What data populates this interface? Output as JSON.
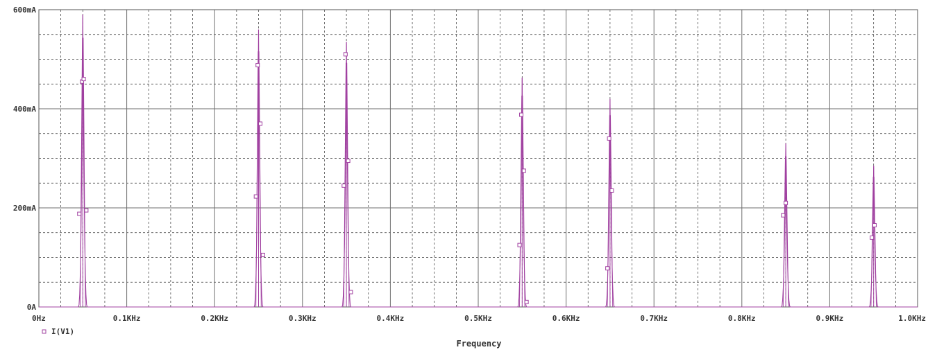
{
  "chart_data": {
    "type": "line",
    "xlabel": "Frequency",
    "ylabel": "",
    "xlim": [
      0,
      1000
    ],
    "ylim": [
      0,
      600
    ],
    "x_ticks": [
      {
        "value": 0,
        "label": "0Hz"
      },
      {
        "value": 100,
        "label": "0.1KHz"
      },
      {
        "value": 200,
        "label": "0.2KHz"
      },
      {
        "value": 300,
        "label": "0.3KHz"
      },
      {
        "value": 400,
        "label": "0.4KHz"
      },
      {
        "value": 500,
        "label": "0.5KHz"
      },
      {
        "value": 600,
        "label": "0.6KHz"
      },
      {
        "value": 700,
        "label": "0.7KHz"
      },
      {
        "value": 800,
        "label": "0.8KHz"
      },
      {
        "value": 900,
        "label": "0.9KHz"
      },
      {
        "value": 1000,
        "label": "1.0KHz"
      }
    ],
    "y_ticks": [
      {
        "value": 0,
        "label": "0A"
      },
      {
        "value": 200,
        "label": "200mA"
      },
      {
        "value": 400,
        "label": "400mA"
      },
      {
        "value": 600,
        "label": "600mA"
      }
    ],
    "grid": true,
    "legend": "bottom-left",
    "series": [
      {
        "name": "I(V1)",
        "color": "#a040a0",
        "marker": "square",
        "peaks": [
          {
            "x": 50,
            "y": 590,
            "markers": [
              [
                46,
                188
              ],
              [
                49,
                455
              ],
              [
                51,
                460
              ],
              [
                54,
                195
              ]
            ]
          },
          {
            "x": 250,
            "y": 560,
            "markers": [
              [
                247,
                223
              ],
              [
                249,
                488
              ],
              [
                252,
                370
              ],
              [
                255,
                105
              ]
            ]
          },
          {
            "x": 350,
            "y": 535,
            "markers": [
              [
                347,
                245
              ],
              [
                349,
                510
              ],
              [
                352,
                295
              ],
              [
                355,
                30
              ]
            ]
          },
          {
            "x": 550,
            "y": 463,
            "markers": [
              [
                547,
                125
              ],
              [
                549,
                388
              ],
              [
                552,
                275
              ],
              [
                555,
                10
              ]
            ]
          },
          {
            "x": 650,
            "y": 420,
            "markers": [
              [
                647,
                78
              ],
              [
                649,
                340
              ],
              [
                652,
                235
              ]
            ]
          },
          {
            "x": 850,
            "y": 330,
            "markers": [
              [
                847,
                185
              ],
              [
                850,
                210
              ]
            ]
          },
          {
            "x": 950,
            "y": 285,
            "markers": [
              [
                948,
                140
              ],
              [
                951,
                165
              ]
            ]
          }
        ]
      }
    ]
  }
}
